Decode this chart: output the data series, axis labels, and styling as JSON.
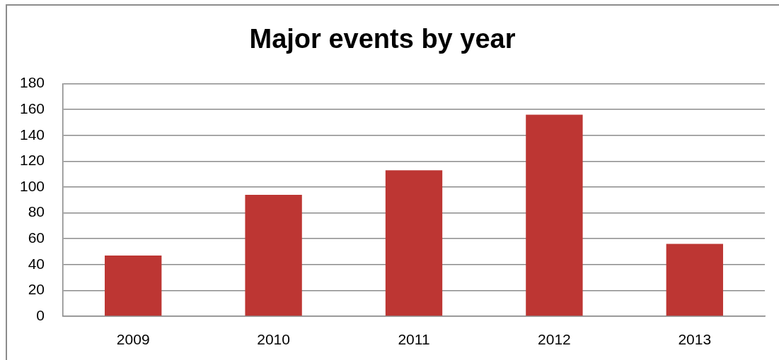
{
  "chart_data": {
    "type": "bar",
    "title": "Major events by year",
    "categories": [
      "2009",
      "2010",
      "2011",
      "2012",
      "2013"
    ],
    "values": [
      47,
      94,
      113,
      156,
      56
    ],
    "color": "#bd3633",
    "ylim": [
      0,
      180
    ],
    "yticks": [
      0,
      20,
      40,
      60,
      80,
      100,
      120,
      140,
      160,
      180
    ],
    "grid": "y"
  }
}
